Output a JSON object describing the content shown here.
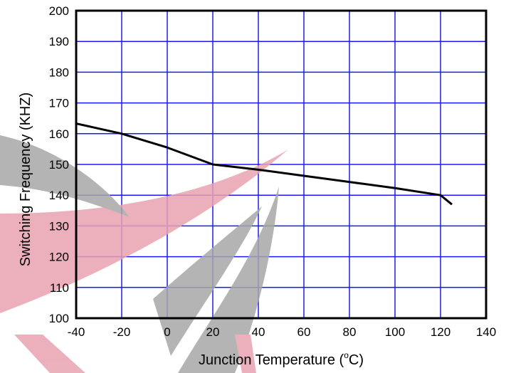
{
  "chart_data": {
    "type": "line",
    "xlabel_main": "Junction Temperature (",
    "xlabel_sup": "o",
    "xlabel_end": "C)",
    "ylabel": "Switching Frequency (KHZ)",
    "xlim": [
      -40,
      140
    ],
    "ylim": [
      100,
      200
    ],
    "x_ticks": [
      -40,
      -20,
      0,
      20,
      40,
      60,
      80,
      100,
      120,
      140
    ],
    "y_ticks": [
      100,
      110,
      120,
      130,
      140,
      150,
      160,
      170,
      180,
      190,
      200
    ],
    "grid": true,
    "colors": {
      "grid": "#1a1aff",
      "line": "#000000",
      "axis": "#000000"
    },
    "series": [
      {
        "points": [
          [
            -40,
            163.3
          ],
          [
            -20,
            160
          ],
          [
            0,
            155.5
          ],
          [
            20,
            150
          ],
          [
            40,
            148.3
          ],
          [
            60,
            146.3
          ],
          [
            80,
            144.3
          ],
          [
            100,
            142.3
          ],
          [
            120,
            140
          ],
          [
            125,
            137
          ]
        ]
      }
    ]
  },
  "watermark": {
    "colors": {
      "red": "#e8a3b0",
      "gray": "#a8a8a8"
    }
  }
}
